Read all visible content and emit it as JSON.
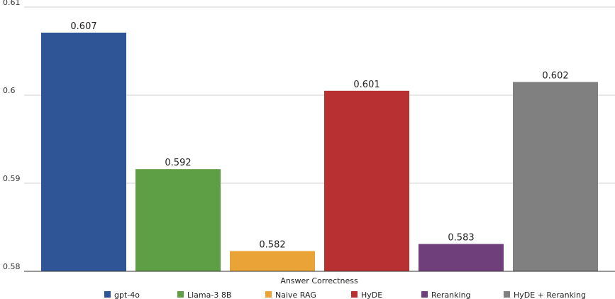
{
  "chart_data": {
    "type": "bar",
    "xlabel": "Answer Correctness",
    "ylabel": "",
    "ylim": [
      0.58,
      0.61
    ],
    "yticks": [
      "0.58",
      "0.59",
      "0.6",
      "0.61"
    ],
    "grid": true,
    "legend_position": "bottom",
    "series": [
      {
        "name": "gpt-4o",
        "value": 0.6071,
        "label": "0.607",
        "color": "#2f5597"
      },
      {
        "name": "Llama-3 8B",
        "value": 0.5916,
        "label": "0.592",
        "color": "#5e9e45"
      },
      {
        "name": "Naive RAG",
        "value": 0.5823,
        "label": "0.582",
        "color": "#eaa337"
      },
      {
        "name": "HyDE",
        "value": 0.6005,
        "label": "0.601",
        "color": "#b93033"
      },
      {
        "name": "Reranking",
        "value": 0.5831,
        "label": "0.583",
        "color": "#6f3f7b"
      },
      {
        "name": "HyDE + Reranking",
        "value": 0.6015,
        "label": "0.602",
        "color": "#808080"
      }
    ]
  }
}
